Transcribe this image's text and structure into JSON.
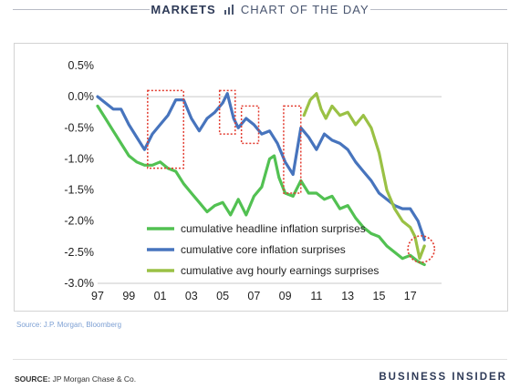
{
  "header": {
    "brand": "MARKETS",
    "subtitle": "CHART OF THE DAY"
  },
  "source_note": "Source: J.P. Morgan, Bloomberg",
  "footer": {
    "source_label": "SOURCE:",
    "source_text": "JP Morgan Chase & Co.",
    "logo": "BUSINESS INSIDER"
  },
  "colors": {
    "headline": "#52c152",
    "core": "#4774bd",
    "earnings": "#9ac145",
    "highlight": "#e23b2f",
    "header_text": "#2e3a57"
  },
  "chart_data": {
    "type": "line",
    "x_tick_labels": [
      "97",
      "99",
      "01",
      "03",
      "05",
      "07",
      "09",
      "11",
      "13",
      "15",
      "17"
    ],
    "y_tick_labels": [
      "0.5%",
      "0.0%",
      "-0.5%",
      "-1.0%",
      "-1.5%",
      "-2.0%",
      "-2.5%",
      "-3.0%"
    ],
    "xlim": [
      1997,
      2019
    ],
    "ylim": [
      -3.0,
      0.5
    ],
    "grid": false,
    "legend_position": "bottom-center",
    "series": [
      {
        "name": "cumulative headline inflation surprises",
        "color_key": "headline",
        "x": [
          1997,
          1997.5,
          1998,
          1998.5,
          1999,
          1999.5,
          2000,
          2000.5,
          2001,
          2001.5,
          2002,
          2002.5,
          2003,
          2003.5,
          2004,
          2004.5,
          2005,
          2005.5,
          2006,
          2006.5,
          2007,
          2007.5,
          2008,
          2008.3,
          2008.6,
          2009,
          2009.5,
          2010,
          2010.5,
          2011,
          2011.5,
          2012,
          2012.5,
          2013,
          2013.5,
          2014,
          2014.5,
          2015,
          2015.5,
          2016,
          2016.5,
          2017,
          2017.5,
          2017.9
        ],
        "y": [
          -0.15,
          -0.35,
          -0.55,
          -0.75,
          -0.95,
          -1.05,
          -1.1,
          -1.1,
          -1.05,
          -1.15,
          -1.2,
          -1.4,
          -1.55,
          -1.7,
          -1.85,
          -1.75,
          -1.7,
          -1.9,
          -1.65,
          -1.9,
          -1.6,
          -1.45,
          -1.0,
          -0.95,
          -1.3,
          -1.55,
          -1.6,
          -1.35,
          -1.55,
          -1.55,
          -1.65,
          -1.6,
          -1.8,
          -1.75,
          -1.95,
          -2.1,
          -2.2,
          -2.25,
          -2.4,
          -2.5,
          -2.6,
          -2.55,
          -2.65,
          -2.7
        ]
      },
      {
        "name": "cumulative core inflation surprises",
        "color_key": "core",
        "x": [
          1997,
          1997.5,
          1998,
          1998.5,
          1999,
          1999.5,
          2000,
          2000.5,
          2001,
          2001.5,
          2002,
          2002.5,
          2003,
          2003.5,
          2004,
          2004.5,
          2005,
          2005.3,
          2005.7,
          2006,
          2006.5,
          2007,
          2007.5,
          2008,
          2008.5,
          2009,
          2009.5,
          2010,
          2010.5,
          2011,
          2011.5,
          2012,
          2012.5,
          2013,
          2013.5,
          2014,
          2014.5,
          2015,
          2015.5,
          2016,
          2016.5,
          2017,
          2017.5,
          2017.9
        ],
        "y": [
          0.0,
          -0.1,
          -0.2,
          -0.2,
          -0.45,
          -0.65,
          -0.85,
          -0.6,
          -0.45,
          -0.3,
          -0.05,
          -0.05,
          -0.35,
          -0.55,
          -0.35,
          -0.25,
          -0.1,
          0.05,
          -0.35,
          -0.5,
          -0.35,
          -0.45,
          -0.6,
          -0.55,
          -0.75,
          -1.05,
          -1.25,
          -0.5,
          -0.65,
          -0.85,
          -0.6,
          -0.7,
          -0.75,
          -0.85,
          -1.05,
          -1.2,
          -1.35,
          -1.55,
          -1.65,
          -1.75,
          -1.8,
          -1.8,
          -2.0,
          -2.3
        ]
      },
      {
        "name": "cumulative avg hourly earnings surprises",
        "color_key": "earnings",
        "x": [
          2010.2,
          2010.6,
          2011,
          2011.3,
          2011.6,
          2012,
          2012.5,
          2013,
          2013.5,
          2014,
          2014.5,
          2015,
          2015.5,
          2016,
          2016.5,
          2017,
          2017.3,
          2017.6,
          2017.9
        ],
        "y": [
          -0.3,
          -0.05,
          0.05,
          -0.2,
          -0.35,
          -0.15,
          -0.3,
          -0.25,
          -0.45,
          -0.3,
          -0.5,
          -0.9,
          -1.5,
          -1.8,
          -2.0,
          -2.1,
          -2.25,
          -2.6,
          -2.4
        ]
      }
    ],
    "highlight_boxes": [
      {
        "x": [
          2000.2,
          2002.5
        ],
        "y": [
          0.1,
          -1.15
        ]
      },
      {
        "x": [
          2004.8,
          2005.8
        ],
        "y": [
          0.1,
          -0.6
        ]
      },
      {
        "x": [
          2006.2,
          2007.3
        ],
        "y": [
          -0.15,
          -0.75
        ]
      },
      {
        "x": [
          2008.9,
          2010.0
        ],
        "y": [
          -0.15,
          -1.55
        ]
      }
    ],
    "highlight_circle": {
      "cx": 2017.7,
      "cy": -2.45,
      "r_years": 0.85
    }
  }
}
